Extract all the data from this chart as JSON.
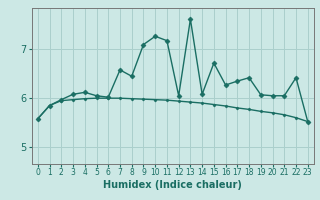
{
  "xlabel": "Humidex (Indice chaleur)",
  "ylabel": "",
  "background_color": "#cce8e5",
  "grid_color": "#aacfcc",
  "line_color": "#1a6e63",
  "xlim": [
    -0.5,
    23.5
  ],
  "ylim": [
    4.65,
    7.85
  ],
  "yticks": [
    5,
    6,
    7
  ],
  "xticks": [
    0,
    1,
    2,
    3,
    4,
    5,
    6,
    7,
    8,
    9,
    10,
    11,
    12,
    13,
    14,
    15,
    16,
    17,
    18,
    19,
    20,
    21,
    22,
    23
  ],
  "x": [
    0,
    1,
    2,
    3,
    4,
    5,
    6,
    7,
    8,
    9,
    10,
    11,
    12,
    13,
    14,
    15,
    16,
    17,
    18,
    19,
    20,
    21,
    22,
    23
  ],
  "y_upper": [
    5.58,
    5.85,
    5.97,
    6.08,
    6.12,
    6.05,
    6.02,
    6.58,
    6.45,
    7.1,
    7.27,
    7.18,
    6.05,
    7.62,
    6.08,
    6.72,
    6.27,
    6.35,
    6.42,
    6.07,
    6.05,
    6.05,
    6.42,
    5.52
  ],
  "y_lower": [
    5.58,
    5.85,
    5.95,
    5.97,
    5.99,
    6.0,
    6.0,
    6.0,
    5.99,
    5.98,
    5.97,
    5.96,
    5.94,
    5.92,
    5.9,
    5.87,
    5.84,
    5.8,
    5.77,
    5.73,
    5.7,
    5.66,
    5.6,
    5.52
  ],
  "marker_upper": "D",
  "marker_lower": "D",
  "marker_size_upper": 2.5,
  "marker_size_lower": 1.5,
  "line_width": 1.0,
  "tick_fontsize_x": 5.5,
  "tick_fontsize_y": 7,
  "xlabel_fontsize": 7
}
